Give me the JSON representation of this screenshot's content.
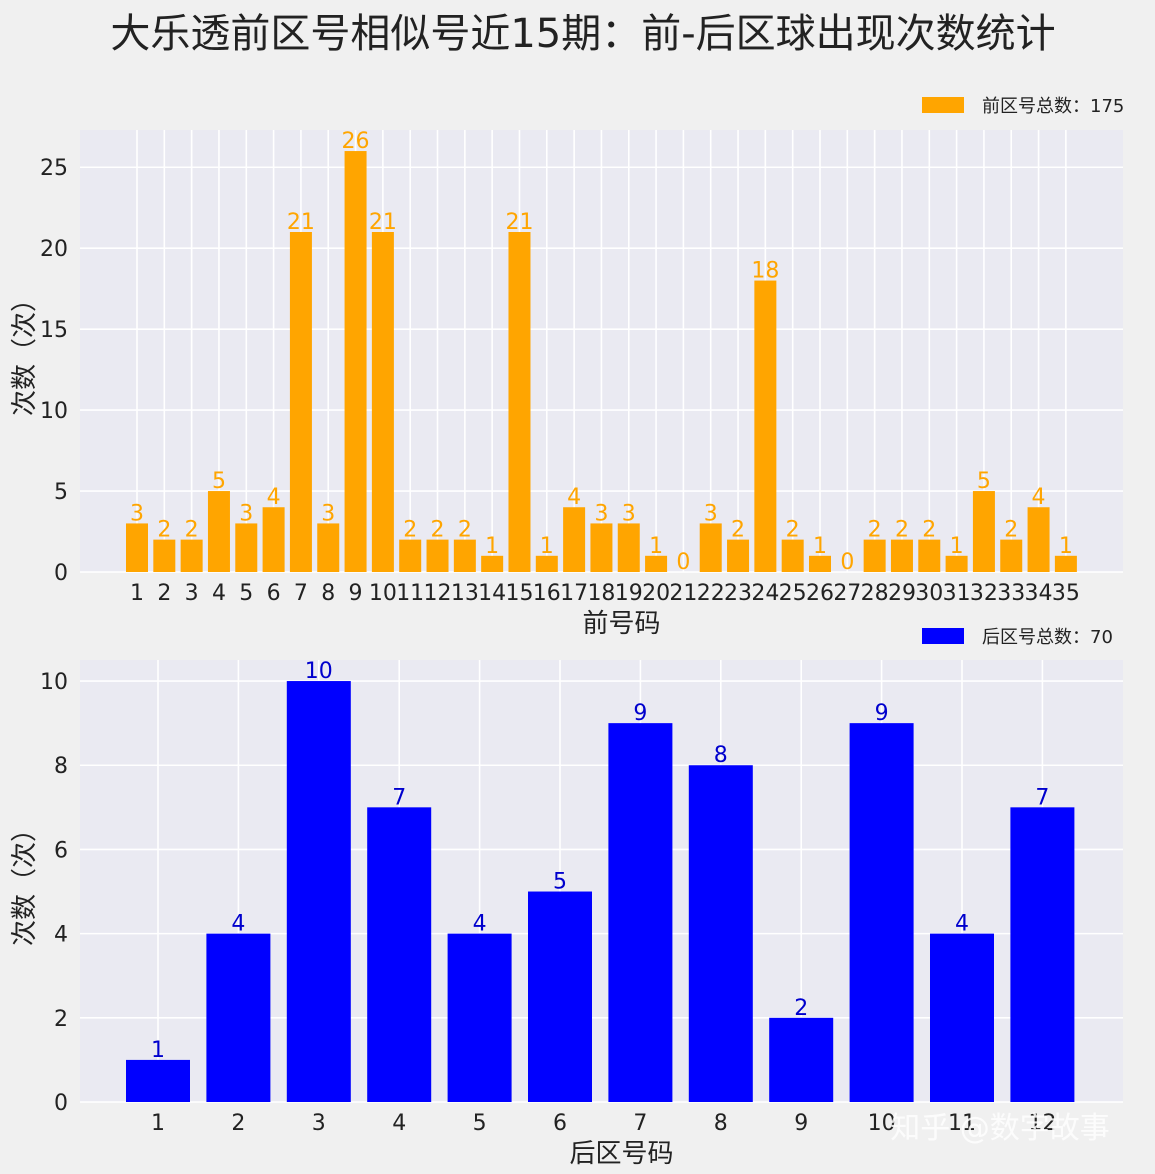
{
  "title": "大乐透前区号相似号近15期：前-后区球出现次数统计",
  "watermark": "知乎 @数字故事",
  "chart_data": [
    {
      "type": "bar",
      "categories": [
        "1",
        "2",
        "3",
        "4",
        "5",
        "6",
        "7",
        "8",
        "9",
        "10",
        "11",
        "12",
        "13",
        "14",
        "15",
        "16",
        "17",
        "18",
        "19",
        "20",
        "21",
        "22",
        "23",
        "24",
        "25",
        "26",
        "27",
        "28",
        "29",
        "30",
        "31",
        "32",
        "33",
        "34",
        "35"
      ],
      "values": [
        3,
        2,
        2,
        5,
        3,
        4,
        21,
        3,
        26,
        21,
        2,
        2,
        2,
        1,
        21,
        1,
        4,
        3,
        3,
        1,
        0,
        3,
        2,
        18,
        2,
        1,
        0,
        2,
        2,
        2,
        1,
        5,
        2,
        4,
        1
      ],
      "xlabel": "前号码",
      "ylabel": "次数（次）",
      "ylim": [
        0,
        27.3
      ],
      "yticks": [
        0,
        5,
        10,
        15,
        20,
        25
      ],
      "legend": "前区号总数：175",
      "legend_position": "top-right",
      "color": "#ffa500",
      "grid": true
    },
    {
      "type": "bar",
      "categories": [
        "1",
        "2",
        "3",
        "4",
        "5",
        "6",
        "7",
        "8",
        "9",
        "10",
        "11",
        "12"
      ],
      "values": [
        1,
        4,
        10,
        7,
        4,
        5,
        9,
        8,
        2,
        9,
        4,
        7
      ],
      "xlabel": "后区号码",
      "ylabel": "次数（次）",
      "ylim": [
        0,
        10.5
      ],
      "yticks": [
        0,
        2,
        4,
        6,
        8,
        10
      ],
      "legend": "后区号总数：70",
      "legend_position": "top-right",
      "color": "#0000ff",
      "label_color": "#0000cd",
      "grid": true
    }
  ]
}
